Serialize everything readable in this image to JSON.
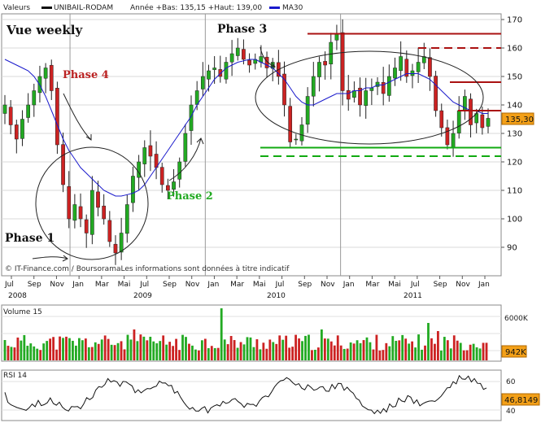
{
  "legend": {
    "valeurs": "Valeurs",
    "symbol": "UNIBAIL-RODAM",
    "details": "Année +Bas: 135,15 +Haut: 139,00",
    "ma": "MA30"
  },
  "colors": {
    "up": "#22aa22",
    "down": "#cc2222",
    "ma30": "#1a1acc",
    "resistance": "#aa1111",
    "support": "#11aa11",
    "background": "#ffffff",
    "grid": "#bbbbbb"
  },
  "annotations": {
    "vue_weekly": "Vue weekly",
    "phase1": "Phase 1",
    "phase2": "Phase 2",
    "phase3": "Phase 3",
    "phase4": "Phase 4"
  },
  "credit": "© IT-Finance.com / BoursoramaLes informations sont données à titre indicatif",
  "last_price_badge": "135,30",
  "volume_panel": {
    "title": "Volume 15",
    "tick_label": "6000K",
    "last_badge": "942K"
  },
  "rsi_panel": {
    "title": "RSI 14",
    "tick_labels": [
      "60",
      "40"
    ],
    "last_badge": "46,8149"
  },
  "chart_data": {
    "type": "candlestick",
    "title": "",
    "ylim": [
      80,
      172
    ],
    "y_ticks": [
      90,
      100,
      110,
      120,
      130,
      140,
      150,
      160,
      170
    ],
    "x_month_labels": [
      "Jul",
      "Sep",
      "Nov",
      "Jan",
      "Mar",
      "Mai",
      "Jul",
      "Sep",
      "Nov",
      "Jan",
      "Mar",
      "Mai",
      "Jul",
      "Sep",
      "Nov",
      "Jan",
      "Mar",
      "Mai",
      "Jul",
      "Sep",
      "Nov",
      "Jan"
    ],
    "x_year_labels": [
      "2008",
      "2009",
      "2010",
      "2011"
    ],
    "grid": true,
    "close_series": [
      140,
      133,
      128,
      135,
      140,
      145,
      150,
      153,
      145,
      126,
      112,
      100,
      105,
      100,
      95,
      110,
      104,
      100,
      92,
      88,
      95,
      105,
      115,
      120,
      125,
      122,
      118,
      112,
      110,
      113,
      120,
      130,
      140,
      145,
      150,
      152,
      153,
      150,
      155,
      158,
      160,
      156,
      154,
      156,
      157,
      153,
      155,
      150,
      140,
      127,
      128,
      133,
      143,
      150,
      155,
      154,
      162,
      165,
      145,
      142,
      145,
      140,
      145,
      146,
      148,
      144,
      150,
      153,
      157,
      150,
      152,
      155,
      157,
      150,
      138,
      132,
      126,
      130,
      138,
      143,
      133,
      137,
      132,
      135.3
    ],
    "ma30": [
      156,
      155,
      154,
      153,
      152,
      150,
      147,
      143,
      138,
      133,
      128,
      124,
      121,
      118,
      116,
      114,
      112,
      110,
      109,
      108,
      108,
      108.5,
      109,
      110,
      112,
      115,
      118,
      121,
      124,
      127,
      130,
      133,
      136,
      140,
      143,
      146,
      149,
      151,
      153,
      154,
      155,
      155.5,
      156,
      156,
      155,
      154,
      153,
      151,
      149,
      146,
      143,
      141,
      140,
      140,
      141,
      142,
      143,
      144,
      144,
      144,
      145,
      145,
      146,
      146,
      147,
      147,
      148,
      149,
      150,
      151,
      151,
      151,
      150,
      149,
      147,
      145,
      143,
      141,
      140,
      139,
      138,
      138,
      137,
      137
    ],
    "levels": [
      {
        "name": "resistance",
        "value": 165,
        "style": "solid"
      },
      {
        "name": "resistance",
        "value": 160,
        "style": "dashed"
      },
      {
        "name": "resistance",
        "value": 148,
        "style": "solid"
      },
      {
        "name": "resistance",
        "value": 138,
        "style": "solid"
      },
      {
        "name": "support",
        "value": 125,
        "style": "solid"
      },
      {
        "name": "support",
        "value": 122,
        "style": "dashed"
      }
    ]
  }
}
